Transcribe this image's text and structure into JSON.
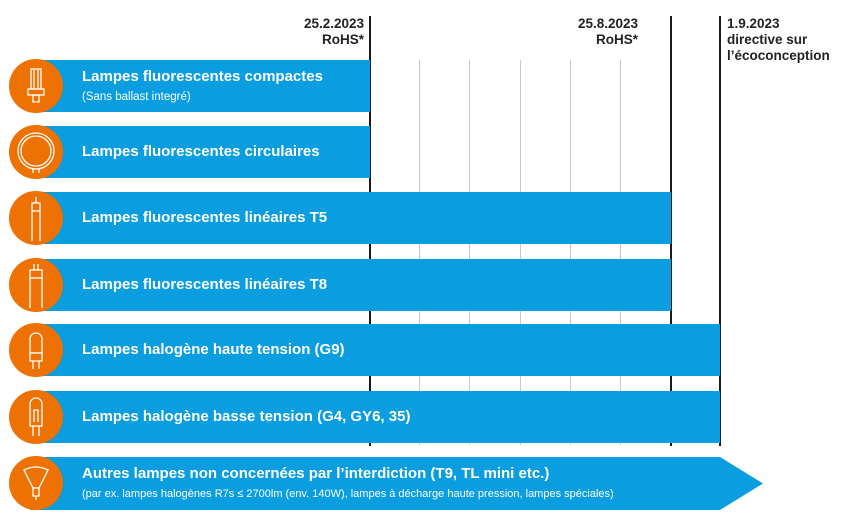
{
  "colors": {
    "bar": "#0a9ee0",
    "icon_bg": "#ee7203",
    "line": "#1a1a1a"
  },
  "milestones": [
    {
      "date": "25.2.2023",
      "label": "RoHS*"
    },
    {
      "date": "25.8.2023",
      "label": "RoHS*"
    },
    {
      "date": "1.9.2023",
      "label": "directive sur",
      "label2": "l’écoconception"
    }
  ],
  "rows": [
    {
      "title": "Lampes fluorescentes compactes",
      "subtitle": "(Sans ballast integré)",
      "icon": "compact-fluorescent-lamp-icon",
      "ends_at": "25.2.2023"
    },
    {
      "title": "Lampes fluorescentes circulaires",
      "icon": "circular-fluorescent-lamp-icon",
      "ends_at": "25.2.2023"
    },
    {
      "title": "Lampes fluorescentes linéaires T5",
      "icon": "linear-tube-lamp-icon",
      "ends_at": "25.8.2023"
    },
    {
      "title": "Lampes fluorescentes linéaires T8",
      "icon": "linear-tube-lamp-icon",
      "ends_at": "25.8.2023"
    },
    {
      "title": "Lampes halogène haute tension (G9)",
      "icon": "g9-halogen-lamp-icon",
      "ends_at": "1.9.2023"
    },
    {
      "title": "Lampes halogène basse tension (G4, GY6, 35)",
      "icon": "low-voltage-halogen-lamp-icon",
      "ends_at": "1.9.2023"
    },
    {
      "title": "Autres lampes non concernées par l’interdiction (T9, TL mini etc.)",
      "subtitle": "(par ex. lampes halogènes R7s ≤ 2700lm (env. 140W), lampes à décharge haute pression, lampes spéciales)",
      "icon": "reflector-lamp-icon",
      "ends_at": "continues"
    }
  ]
}
